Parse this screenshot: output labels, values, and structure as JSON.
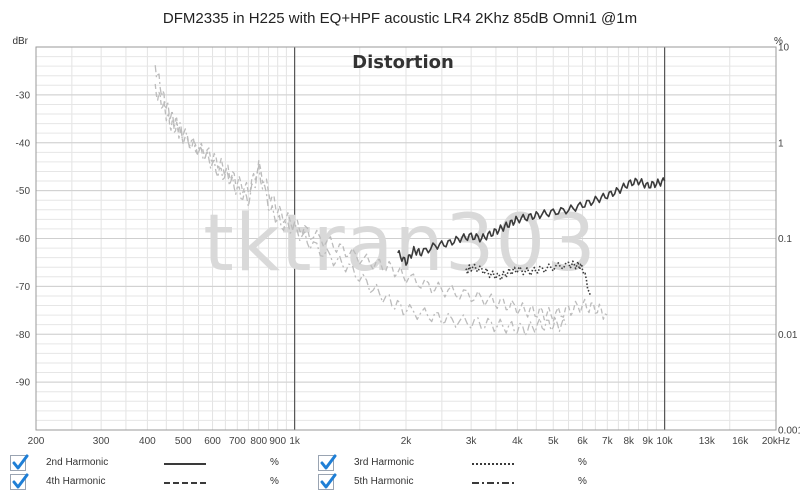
{
  "chart_data": {
    "type": "line",
    "title": "DFM2335 in H225 with EQ+HPF acoustic LR4 2Khz 85dB Omni1 @1m",
    "subtitle": "Distortion",
    "watermark": "tktran303",
    "x_scale": "log",
    "xlim": [
      200,
      20000
    ],
    "x_ticks": [
      200,
      300,
      400,
      500,
      600,
      700,
      800,
      900,
      1000,
      2000,
      3000,
      4000,
      5000,
      6000,
      7000,
      8000,
      9000,
      10000,
      13000,
      16000,
      20000
    ],
    "x_tick_labels": [
      "200",
      "300",
      "400",
      "500",
      "600",
      "700",
      "800",
      "900",
      "1k",
      "2k",
      "3k",
      "4k",
      "5k",
      "6k",
      "7k",
      "8k",
      "9k",
      "10k",
      "13k",
      "16k",
      "20kHz"
    ],
    "y_left_label": "dBr",
    "ylim": [
      -100,
      -20
    ],
    "y_left_ticks": [
      -30,
      -40,
      -50,
      -60,
      -70,
      -80,
      -90
    ],
    "y_left_tick_labels": [
      "-30",
      "-40",
      "-50",
      "-60",
      "-70",
      "-80",
      "-90"
    ],
    "y_right_label": "%",
    "y_right_ticks": [
      10,
      1,
      0.1,
      0.01,
      0.001
    ],
    "y_right_tick_labels": [
      "10",
      "1",
      "0.1",
      "0.01",
      "0.001"
    ],
    "grid": true,
    "legend_position": "bottom",
    "series": [
      {
        "name": "2nd Harmonic",
        "unit": "%",
        "color": "#3a3a3a",
        "style": "solid",
        "x": [
          1900,
          2000,
          2100,
          2200,
          2400,
          2600,
          2800,
          3000,
          3200,
          3400,
          3600,
          3800,
          4000,
          4300,
          4600,
          5000,
          5500,
          6000,
          6500,
          7000,
          7500,
          8000,
          8500,
          9000,
          9500,
          10000
        ],
        "y": [
          -63,
          -65,
          -62.5,
          -63,
          -61.5,
          -61,
          -60,
          -59.5,
          -60,
          -59,
          -58,
          -57,
          -56,
          -55.5,
          -55,
          -54.5,
          -54,
          -53,
          -52,
          -51,
          -50,
          -48.5,
          -48,
          -49,
          -48.5,
          -48
        ]
      },
      {
        "name": "3rd Harmonic",
        "unit": "%",
        "color": "#3a3a3a",
        "style": "dotted",
        "x": [
          2900,
          3000,
          3200,
          3400,
          3600,
          3800,
          4000,
          4300,
          4600,
          5000,
          5500,
          5800,
          6000,
          6300
        ],
        "y": [
          -67,
          -66,
          -66.5,
          -67.5,
          -68,
          -67,
          -66.5,
          -67,
          -66.5,
          -66,
          -65.5,
          -65.5,
          -66,
          -72
        ]
      },
      {
        "name": "4th Harmonic",
        "unit": "%",
        "color": "#bcbcbc",
        "style": "dashed",
        "x": [
          420,
          440,
          460,
          480,
          500,
          540,
          580,
          620,
          660,
          700,
          750,
          800,
          860,
          920,
          1000,
          1100,
          1250,
          1400,
          1600,
          1800,
          2000,
          2300,
          2600,
          3000,
          3400,
          3800,
          4200,
          4600,
          5000,
          5500,
          6000,
          6500,
          7000
        ],
        "y": [
          -29,
          -32,
          -36,
          -37,
          -39,
          -41,
          -42,
          -44,
          -46,
          -48,
          -50,
          -45,
          -51,
          -55,
          -57,
          -59,
          -61,
          -63,
          -65,
          -66,
          -68,
          -70,
          -71,
          -72,
          -73,
          -74,
          -75,
          -75.5,
          -76,
          -75,
          -74,
          -74.5,
          -76
        ]
      },
      {
        "name": "5th Harmonic",
        "unit": "%",
        "color": "#bcbcbc",
        "style": "dashdot",
        "x": [
          420,
          440,
          460,
          480,
          500,
          540,
          580,
          620,
          660,
          700,
          750,
          800,
          860,
          920,
          1000,
          1100,
          1250,
          1400,
          1600,
          1800,
          2000,
          2300,
          2600,
          3000,
          3400,
          3800,
          4200,
          4600,
          5000,
          5400
        ],
        "y": [
          -24,
          -30,
          -34,
          -36,
          -38,
          -41,
          -43,
          -46,
          -47,
          -50,
          -52,
          -46,
          -54,
          -57,
          -58,
          -61,
          -64,
          -66,
          -70,
          -73,
          -75,
          -76,
          -77,
          -77.5,
          -78,
          -78.5,
          -79,
          -78,
          -78,
          -78
        ]
      }
    ]
  },
  "legend": {
    "unit": "%",
    "items": [
      {
        "name": "2nd Harmonic",
        "unit": "%",
        "checked": true,
        "style": "solid"
      },
      {
        "name": "3rd Harmonic",
        "unit": "%",
        "checked": true,
        "style": "dotted"
      },
      {
        "name": "4th Harmonic",
        "unit": "%",
        "checked": true,
        "style": "dashed"
      },
      {
        "name": "5th Harmonic",
        "unit": "%",
        "checked": true,
        "style": "dashdot"
      }
    ]
  },
  "colors": {
    "check_blue": "#1f7fd6",
    "grid_minor": "#e3e3e3",
    "grid_major": "#555555",
    "frame": "#9a9a9a",
    "watermark": "#d9d9d9"
  }
}
